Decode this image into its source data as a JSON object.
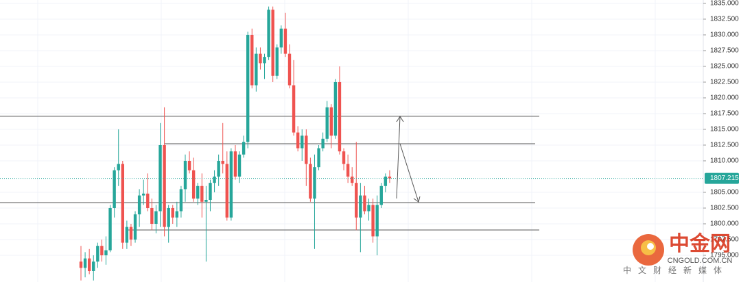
{
  "chart_data": {
    "type": "candlestick",
    "up_color": "#26a69a",
    "down_color": "#ef5350",
    "open": [
      1794.0,
      1793.0,
      1794.5,
      1792.5,
      1794.0,
      1796.5,
      1795.0,
      1795.8,
      1802.5,
      1808.5,
      1809.5,
      1797.0,
      1799.5,
      1797.5,
      1801.5,
      1804.5,
      1804.8,
      1802.5,
      1800.0,
      1802.0,
      1812.5,
      1799.5,
      1802.5,
      1801.0,
      1802.0,
      1805.5,
      1810.0,
      1808.5,
      1804.0,
      1806.0,
      1803.5,
      1803.8,
      1806.5,
      1807.5,
      1810.0,
      1809.5,
      1801.0,
      1811.5,
      1807.5,
      1811.0,
      1813.0,
      1830.0,
      1822.0,
      1827.0,
      1825.5,
      1826.5,
      1834.0,
      1823.5,
      1828.0,
      1831.0,
      1827.0,
      1822.0,
      1814.5,
      1812.0,
      1814.0,
      1809.5,
      1804.0,
      1809.0,
      1812.0,
      1813.5,
      1818.5,
      1814.0,
      1822.5,
      1811.5,
      1809.5,
      1807.5,
      1806.5,
      1801.0,
      1804.5,
      1802.0,
      1803.0,
      1798.0,
      1803.0,
      1806.0,
      1807.5
    ],
    "high": [
      1796.5,
      1795.5,
      1796.0,
      1795.0,
      1797.0,
      1797.5,
      1798.0,
      1803.0,
      1809.0,
      1815.0,
      1810.0,
      1800.5,
      1800.0,
      1802.0,
      1805.5,
      1807.0,
      1808.0,
      1804.0,
      1803.0,
      1816.0,
      1818.5,
      1803.0,
      1803.0,
      1803.5,
      1806.0,
      1811.0,
      1811.5,
      1810.5,
      1806.5,
      1808.0,
      1806.0,
      1807.0,
      1808.5,
      1811.0,
      1816.0,
      1811.5,
      1812.0,
      1812.5,
      1811.5,
      1814.0,
      1830.5,
      1831.0,
      1828.0,
      1828.0,
      1827.0,
      1834.5,
      1834.5,
      1828.5,
      1831.5,
      1833.5,
      1828.5,
      1826.0,
      1815.5,
      1815.0,
      1815.0,
      1810.5,
      1811.0,
      1812.5,
      1814.5,
      1819.5,
      1819.0,
      1823.0,
      1825.0,
      1812.0,
      1811.0,
      1809.0,
      1813.0,
      1806.5,
      1806.0,
      1804.0,
      1804.0,
      1804.5,
      1806.5,
      1808.0,
      1808.5
    ],
    "low": [
      1791.0,
      1791.5,
      1792.0,
      1791.0,
      1793.0,
      1794.0,
      1793.5,
      1795.5,
      1801.0,
      1806.0,
      1796.0,
      1796.0,
      1796.5,
      1797.0,
      1799.5,
      1803.0,
      1802.0,
      1799.0,
      1798.5,
      1799.5,
      1798.0,
      1797.0,
      1800.0,
      1799.5,
      1801.0,
      1803.5,
      1808.0,
      1803.5,
      1803.0,
      1801.0,
      1794.0,
      1802.0,
      1805.0,
      1806.0,
      1808.0,
      1800.5,
      1800.5,
      1807.0,
      1806.5,
      1810.5,
      1812.0,
      1821.5,
      1821.0,
      1824.5,
      1823.0,
      1826.0,
      1822.5,
      1823.0,
      1827.0,
      1826.5,
      1821.5,
      1814.0,
      1811.5,
      1810.0,
      1806.0,
      1803.5,
      1796.0,
      1808.5,
      1811.5,
      1813.0,
      1812.0,
      1813.5,
      1811.0,
      1808.5,
      1806.5,
      1806.0,
      1799.0,
      1795.5,
      1801.5,
      1800.5,
      1797.0,
      1795.0,
      1802.5,
      1805.0,
      1806.5
    ],
    "close": [
      1793.0,
      1794.5,
      1792.5,
      1794.0,
      1796.5,
      1795.0,
      1795.8,
      1802.5,
      1808.5,
      1809.5,
      1797.0,
      1799.5,
      1797.5,
      1801.5,
      1804.5,
      1804.8,
      1802.5,
      1800.0,
      1802.0,
      1812.5,
      1799.5,
      1802.5,
      1801.0,
      1802.0,
      1805.5,
      1810.0,
      1808.5,
      1804.0,
      1806.0,
      1803.5,
      1803.8,
      1806.5,
      1807.5,
      1810.0,
      1809.5,
      1801.0,
      1811.5,
      1807.5,
      1811.0,
      1813.0,
      1830.0,
      1822.0,
      1827.0,
      1825.5,
      1826.5,
      1834.0,
      1823.5,
      1828.0,
      1831.0,
      1827.0,
      1822.0,
      1814.5,
      1812.0,
      1814.0,
      1809.5,
      1804.0,
      1809.0,
      1812.0,
      1813.5,
      1818.5,
      1814.0,
      1822.5,
      1811.5,
      1809.5,
      1807.5,
      1806.5,
      1801.0,
      1804.5,
      1802.0,
      1803.0,
      1798.0,
      1803.0,
      1806.0,
      1807.5,
      1807.215
    ],
    "ylim": [
      1790.76,
      1835.54
    ],
    "yticks": [
      {
        "value": 1835,
        "label": "1835.000"
      },
      {
        "value": 1832.5,
        "label": "1832.500"
      },
      {
        "value": 1830,
        "label": "1830.000"
      },
      {
        "value": 1827.5,
        "label": "1827.500"
      },
      {
        "value": 1825,
        "label": "1825.000"
      },
      {
        "value": 1822.5,
        "label": "1822.500"
      },
      {
        "value": 1820,
        "label": "1820.000"
      },
      {
        "value": 1817.5,
        "label": "1817.500"
      },
      {
        "value": 1815,
        "label": "1815.000"
      },
      {
        "value": 1812.5,
        "label": "1812.500"
      },
      {
        "value": 1810,
        "label": "1810.000"
      },
      {
        "value": 1805,
        "label": "1805.000"
      },
      {
        "value": 1802.5,
        "label": "1802.500"
      },
      {
        "value": 1800,
        "label": "1800.000"
      },
      {
        "value": 1797.5,
        "label": "1797.500"
      },
      {
        "value": 1795,
        "label": "1795.000"
      }
    ],
    "last_price": 1807.215,
    "last_price_color": "#26a69a",
    "horizontal_lines": [
      1817.07,
      1812.72,
      1803.37,
      1799.02
    ],
    "line_color": "#555555",
    "grid": true,
    "watermark": {
      "logo": "中金网",
      "site": "CNGOLD.COM.CN",
      "tagline": "中文财经新媒体"
    }
  }
}
